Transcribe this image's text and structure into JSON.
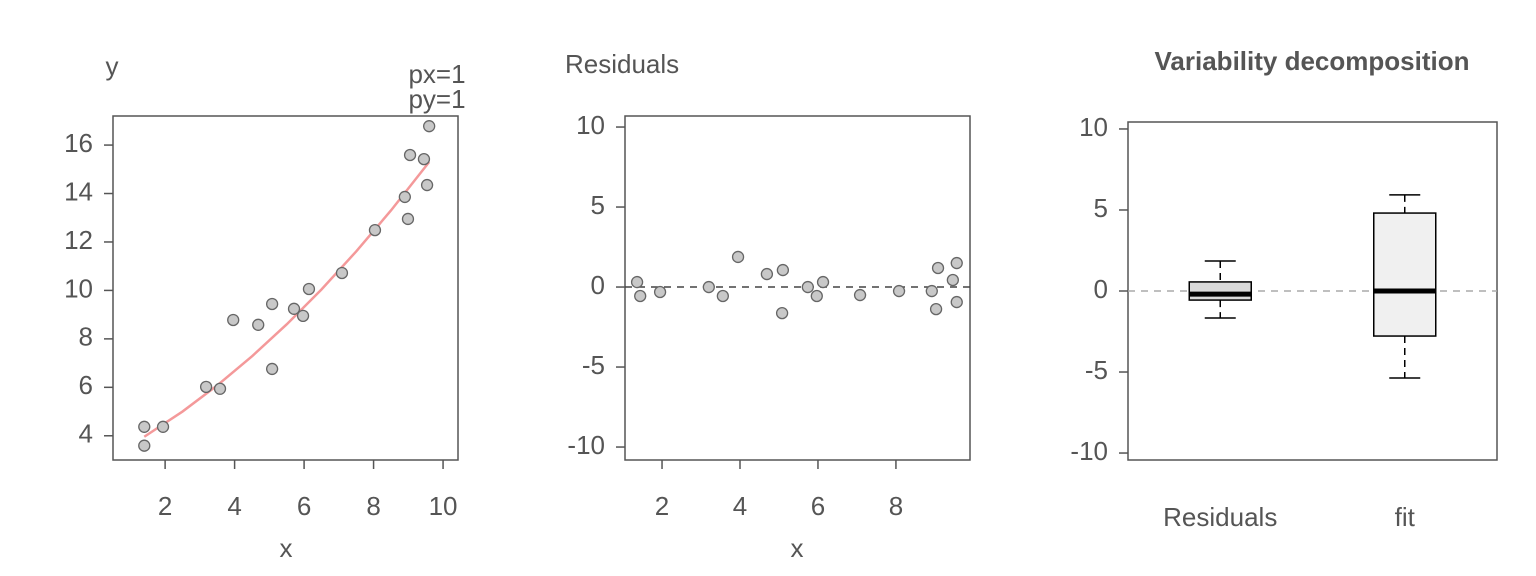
{
  "chart_data": [
    {
      "type": "scatter",
      "ylabel": "y",
      "xlabel": "x",
      "annotations": [
        "px=1",
        "py=1"
      ],
      "x": [
        1.4,
        1.4,
        1.94,
        3.18,
        3.58,
        3.96,
        4.68,
        5.08,
        5.08,
        5.71,
        5.97,
        6.14,
        7.09,
        8.04,
        8.9,
        8.99,
        9.05,
        9.45,
        9.54,
        9.6
      ],
      "y": [
        4.37,
        3.59,
        4.37,
        6.02,
        5.94,
        8.78,
        8.58,
        9.44,
        6.76,
        9.24,
        8.95,
        10.06,
        10.72,
        12.49,
        13.86,
        12.95,
        15.59,
        15.42,
        14.35,
        16.78
      ],
      "color": "#c8c8c8",
      "fit": {
        "x": [
          1.4,
          2.5,
          3.5,
          4.5,
          5.5,
          6.5,
          7.5,
          8.5,
          9.6
        ],
        "y": [
          3.96,
          5.0,
          6.08,
          7.28,
          8.6,
          10.04,
          11.61,
          13.3,
          15.3
        ],
        "color": "#f4999a"
      },
      "xlim": [
        0.5,
        10.43
      ],
      "ylim": [
        3.0,
        17.2
      ],
      "xticks": [
        2,
        4,
        6,
        8,
        10
      ],
      "yticks": [
        4,
        6,
        8,
        10,
        12,
        14,
        16
      ]
    },
    {
      "type": "scatter",
      "title": "Residuals",
      "xlabel": "x",
      "x": [
        1.36,
        1.44,
        1.95,
        3.2,
        3.56,
        3.95,
        4.69,
        5.1,
        5.08,
        5.74,
        5.97,
        6.13,
        7.08,
        8.08,
        8.92,
        9.03,
        9.08,
        9.46,
        9.56,
        9.56
      ],
      "y": [
        0.31,
        -0.56,
        -0.31,
        0,
        -0.56,
        1.88,
        0.81,
        1.06,
        -1.63,
        0,
        -0.56,
        0.31,
        -0.5,
        -0.25,
        -0.25,
        -1.38,
        1.19,
        0.44,
        1.5,
        -0.94
      ],
      "color": "#c8c8c8",
      "hline": 0,
      "xlim": [
        1.05,
        9.9
      ],
      "ylim": [
        -10.81,
        10.69
      ],
      "xticks": [
        2,
        4,
        6,
        8
      ],
      "yticks": [
        -10,
        -5,
        0,
        5,
        10
      ]
    },
    {
      "type": "box",
      "title": "Variability decomposition",
      "categories": [
        "Residuals",
        "fit"
      ],
      "boxes": [
        {
          "whislo": -1.67,
          "q1": -0.56,
          "med": -0.19,
          "q3": 0.56,
          "whishi": 1.85
        },
        {
          "whislo": -5.37,
          "q1": -2.78,
          "med": 0,
          "q3": 4.81,
          "whishi": 5.93
        }
      ],
      "colors": [
        "#d9d9d9",
        "#f0f0f0"
      ],
      "hline": 0,
      "ylim": [
        -10.43,
        10.43
      ],
      "yticks": [
        -10,
        -5,
        0,
        5,
        10
      ]
    }
  ]
}
